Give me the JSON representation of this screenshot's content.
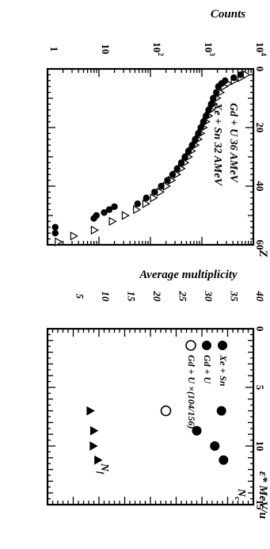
{
  "chart_data": [
    {
      "type": "scatter",
      "title": "",
      "xlabel": "Z",
      "ylabel": "Counts",
      "xlim": [
        0,
        60
      ],
      "ylim_log10": [
        0,
        4
      ],
      "xticks": [
        "0",
        "20",
        "40",
        "60"
      ],
      "yticks": [
        {
          "base": "1",
          "exp": ""
        },
        {
          "base": "10",
          "exp": ""
        },
        {
          "base": "10",
          "exp": "2"
        },
        {
          "base": "10",
          "exp": "3"
        },
        {
          "base": "10",
          "exp": "4"
        }
      ],
      "annotations": [
        "Gd + U  36 AMeV",
        "Xe + Sn  32 AMeV"
      ],
      "series": [
        {
          "marker": "triangle-open",
          "points": [
            [
              2,
              3.85
            ],
            [
              3,
              3.75
            ],
            [
              4,
              3.62
            ],
            [
              5,
              3.5
            ],
            [
              6,
              3.42
            ],
            [
              8,
              3.35
            ],
            [
              10,
              3.28
            ],
            [
              12,
              3.22
            ],
            [
              14,
              3.17
            ],
            [
              16,
              3.12
            ],
            [
              18,
              3.07
            ],
            [
              20,
              3.02
            ],
            [
              22,
              2.97
            ],
            [
              24,
              2.92
            ],
            [
              26,
              2.86
            ],
            [
              28,
              2.79
            ],
            [
              30,
              2.73
            ],
            [
              32,
              2.66
            ],
            [
              34,
              2.59
            ],
            [
              36,
              2.5
            ],
            [
              38,
              2.4
            ],
            [
              40,
              2.3
            ],
            [
              42,
              2.18
            ],
            [
              44,
              2.05
            ],
            [
              46,
              1.9
            ],
            [
              48,
              1.72
            ],
            [
              50,
              1.5
            ],
            [
              52,
              1.25
            ],
            [
              55,
              0.9
            ],
            [
              57,
              0.5
            ],
            [
              59,
              0.2
            ]
          ]
        },
        {
          "marker": "circle-filled",
          "points": [
            [
              2,
              3.75
            ],
            [
              3,
              3.62
            ],
            [
              4,
              3.45
            ],
            [
              5,
              3.38
            ],
            [
              6,
              3.32
            ],
            [
              8,
              3.28
            ],
            [
              10,
              3.22
            ],
            [
              12,
              3.18
            ],
            [
              14,
              3.13
            ],
            [
              16,
              3.08
            ],
            [
              18,
              3.03
            ],
            [
              20,
              2.98
            ],
            [
              22,
              2.93
            ],
            [
              24,
              2.87
            ],
            [
              26,
              2.81
            ],
            [
              28,
              2.74
            ],
            [
              30,
              2.67
            ],
            [
              32,
              2.6
            ],
            [
              34,
              2.52
            ],
            [
              36,
              2.43
            ],
            [
              38,
              2.33
            ],
            [
              40,
              2.21
            ],
            [
              42,
              2.08
            ],
            [
              44,
              1.92
            ],
            [
              46,
              1.75
            ],
            [
              47,
              1.3
            ],
            [
              48,
              1.2
            ],
            [
              49,
              1.1
            ],
            [
              50,
              0.95
            ],
            [
              51,
              0.9
            ],
            [
              54,
              0.15
            ],
            [
              56,
              0.15
            ]
          ]
        }
      ]
    },
    {
      "type": "scatter",
      "title": "",
      "xlabel": "ε* MeV/u",
      "ylabel": "Average multiplicity",
      "xlim": [
        0,
        15
      ],
      "ylim": [
        0,
        40
      ],
      "xticks": [
        "0",
        "5",
        "10",
        "15"
      ],
      "yticks": [
        "5",
        "10",
        "15",
        "20",
        "25",
        "30",
        "35",
        "40"
      ],
      "legend": [
        "Xe + Sn",
        "Gd + U",
        "Gd + U ×(104/156)"
      ],
      "series": [
        {
          "name": "N_c",
          "marker": "circle-filled",
          "points": [
            [
              7,
              33.8
            ],
            [
              8.7,
              29
            ],
            [
              10,
              32.5
            ],
            [
              11.2,
              34.2
            ]
          ]
        },
        {
          "name": "N_c",
          "marker": "circle-open",
          "points": [
            [
              7,
              23
            ]
          ]
        },
        {
          "name": "N_f",
          "marker": "triangle-filled",
          "points": [
            [
              7,
              8.2
            ],
            [
              8.7,
              8.9
            ],
            [
              10,
              8.8
            ],
            [
              11.2,
              9.7
            ]
          ]
        }
      ],
      "curve_labels": [
        {
          "name": "N",
          "sub": "c"
        },
        {
          "name": "N",
          "sub": "f"
        }
      ]
    }
  ]
}
